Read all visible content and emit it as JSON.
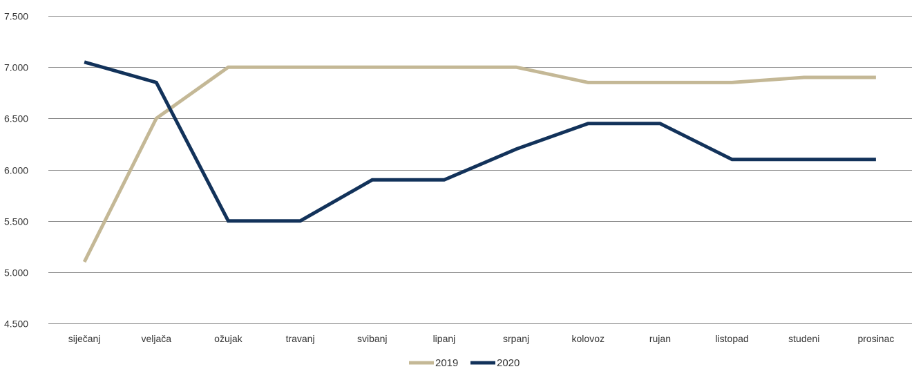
{
  "chart_data": {
    "type": "line",
    "categories": [
      "siječanj",
      "veljača",
      "ožujak",
      "travanj",
      "svibanj",
      "lipanj",
      "srpanj",
      "kolovoz",
      "rujan",
      "listopad",
      "studeni",
      "prosinac"
    ],
    "series": [
      {
        "name": "2019",
        "color": "#c4b896",
        "values": [
          5100,
          6500,
          7000,
          7000,
          7000,
          7000,
          7000,
          6850,
          6850,
          6850,
          6900,
          6900
        ]
      },
      {
        "name": "2020",
        "color": "#12325a",
        "values": [
          7050,
          6850,
          5500,
          5500,
          5900,
          5900,
          6200,
          6450,
          6450,
          6100,
          6100,
          6100
        ]
      }
    ],
    "ylim": [
      4500,
      7500
    ],
    "yticks": [
      4500,
      5000,
      5500,
      6000,
      6500,
      7000,
      7500
    ],
    "ytick_labels": [
      "4.500",
      "5.000",
      "5.500",
      "6.000",
      "6.500",
      "7.000",
      "7.500"
    ],
    "grid": true,
    "legend_position": "bottom"
  }
}
